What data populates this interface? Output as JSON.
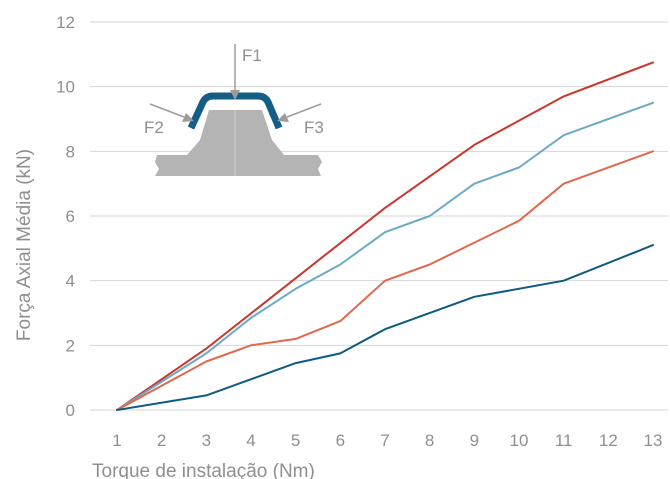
{
  "chart_data": {
    "type": "line",
    "title": "",
    "xlabel": "Torque de instalação (Nm)",
    "ylabel": "Força Axial Média (kN)",
    "x": [
      1,
      2,
      3,
      4,
      5,
      6,
      7,
      8,
      9,
      10,
      11,
      12,
      13
    ],
    "xlim": [
      1,
      13
    ],
    "ylim": [
      0,
      12
    ],
    "yticks": [
      0,
      2,
      4,
      6,
      8,
      10,
      12
    ],
    "grid": "horizontal",
    "legend": "none",
    "series": [
      {
        "color": "#c9362b",
        "x": [
          1,
          3,
          7,
          9,
          11,
          13
        ],
        "values": [
          0,
          1.9,
          6.25,
          8.2,
          9.7,
          10.75
        ]
      },
      {
        "color": "#6aa9c8",
        "x": [
          1,
          3,
          4,
          5,
          6,
          7,
          8,
          9,
          10,
          11,
          13
        ],
        "values": [
          0,
          1.75,
          2.85,
          3.75,
          4.5,
          5.5,
          6.0,
          7.0,
          7.5,
          8.5,
          9.5
        ]
      },
      {
        "color": "#e0694d",
        "x": [
          1,
          3,
          4,
          5,
          6,
          7,
          8,
          10,
          11,
          13
        ],
        "values": [
          0,
          1.5,
          2.0,
          2.2,
          2.75,
          4.0,
          4.5,
          5.85,
          7.0,
          8.0
        ]
      },
      {
        "color": "#0f5a82",
        "x": [
          1,
          3,
          5,
          6,
          7,
          9,
          11,
          13
        ],
        "values": [
          0,
          0.45,
          1.45,
          1.75,
          2.5,
          3.5,
          4.0,
          5.1
        ]
      }
    ]
  },
  "inset": {
    "labels": {
      "f1": "F1",
      "f2": "F2",
      "f3": "F3"
    },
    "colors": {
      "clamp": "#135d86",
      "profile": "#b4b4b4",
      "arrow": "#9c9c9c"
    }
  }
}
